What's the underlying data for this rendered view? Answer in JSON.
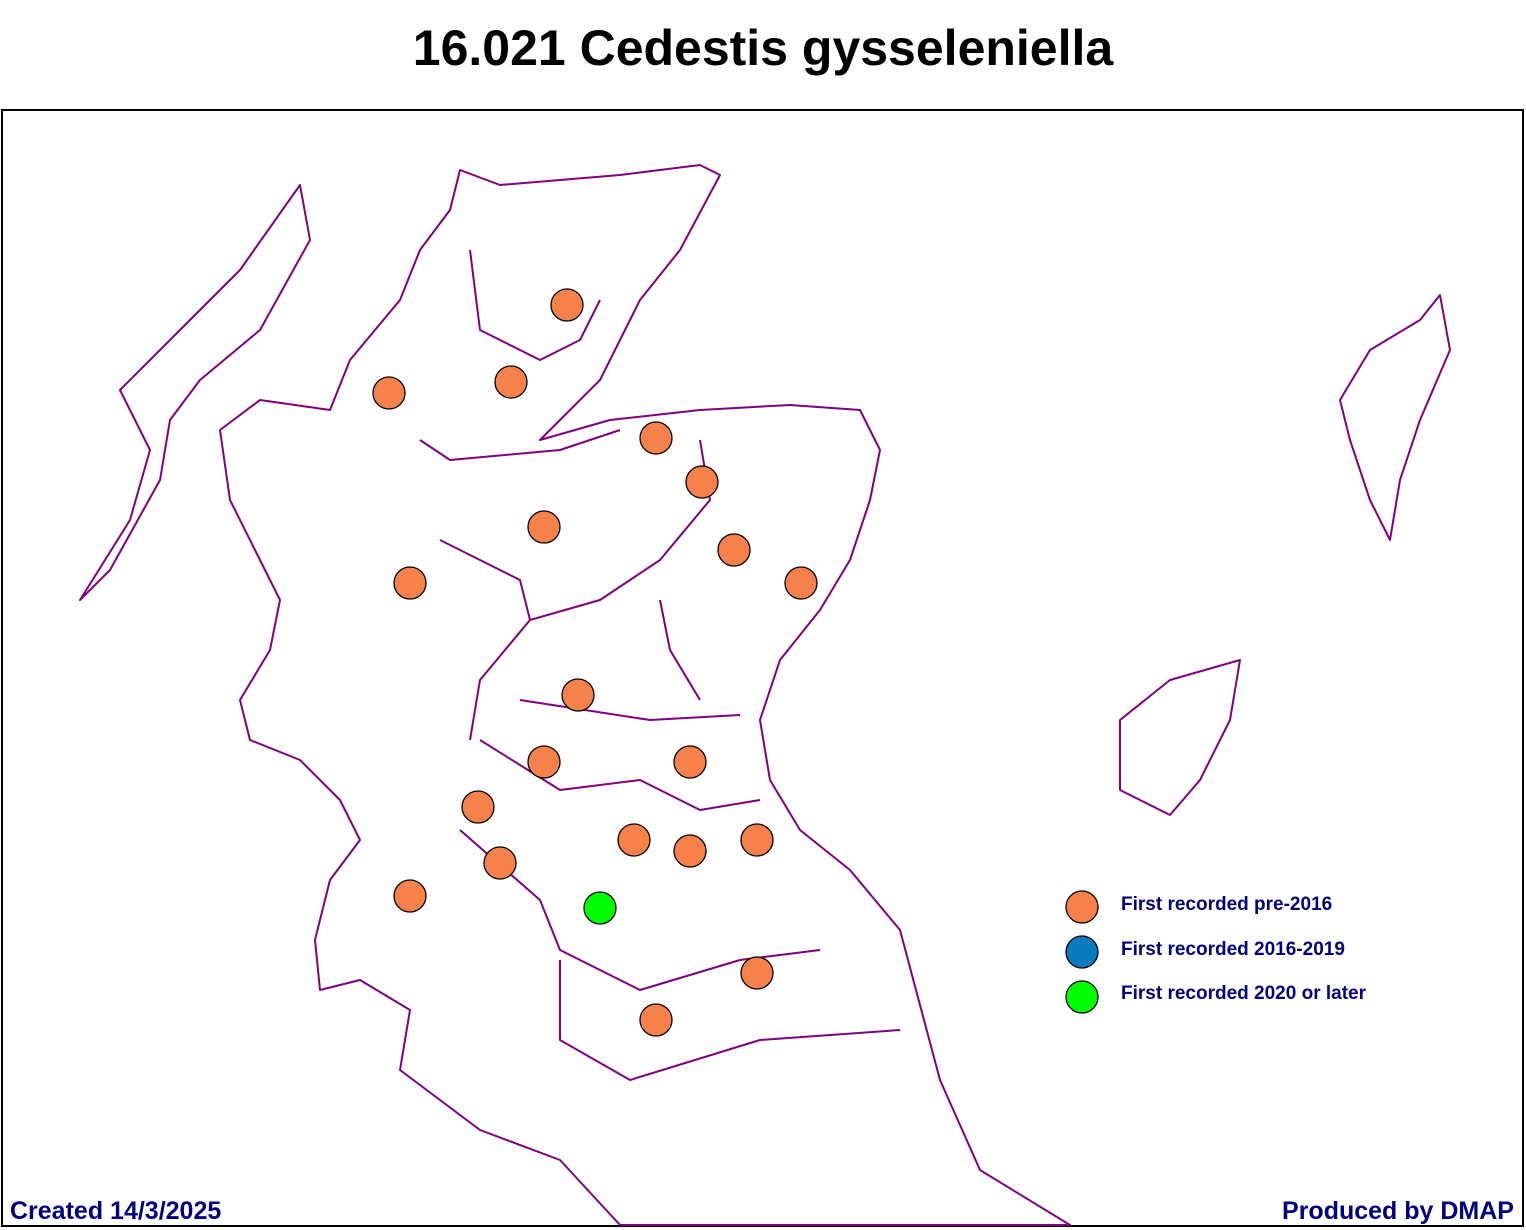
{
  "title": "16.021 Cedestis gysseleniella",
  "legend": [
    {
      "label": "First recorded pre-2016",
      "color": "#f6814b"
    },
    {
      "label": "First recorded 2016-2019",
      "color": "#0a7bbd"
    },
    {
      "label": "First recorded 2020 or later",
      "color": "#00ff00"
    }
  ],
  "footer": {
    "created": "Created 14/3/2025",
    "produced": "Produced by DMAP"
  }
}
